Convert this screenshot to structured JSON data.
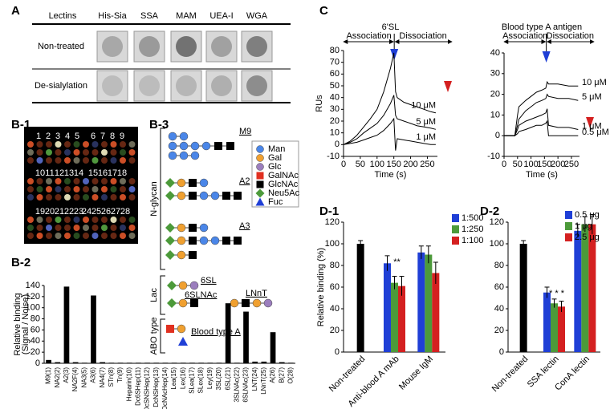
{
  "panel_labels": [
    "A",
    "B-1",
    "B-2",
    "B-3",
    "C",
    "D-1",
    "D-2"
  ],
  "blot": {
    "header": "Lectins",
    "columns": [
      "His-Sia",
      "SSA",
      "MAM",
      "UEA-I",
      "WGA"
    ],
    "rows": [
      "Non-treated",
      "De-sialylation"
    ]
  },
  "array": {
    "spot_numbers": [
      1,
      2,
      3,
      4,
      5,
      6,
      7,
      8,
      9,
      10,
      11,
      12,
      13,
      14,
      15,
      16,
      17,
      18,
      19,
      20,
      21,
      22,
      23,
      24,
      25,
      26,
      27,
      28
    ]
  },
  "glycans": {
    "legend": [
      "Man",
      "Gal",
      "Glc",
      "GalNAc",
      "GlcNAc",
      "Neu5Ac",
      "Fuc"
    ],
    "groups": [
      "N-glycan",
      "Lac",
      "ABO type"
    ],
    "names": [
      "M9",
      "A2",
      "A3",
      "6SL",
      "6SLNAc",
      "LNnT",
      "Blood type A"
    ]
  },
  "chart_data": [
    {
      "type": "bar",
      "ylabel": [
        "Relative binding",
        "(Signal / Noise)"
      ],
      "categories": [
        "M9(1)",
        "NA2(2)",
        "A2(3)",
        "NA2F(4)",
        "NA3(5)",
        "A3(6)",
        "NA4(7)",
        "STn(8)",
        "Tn(9)",
        "Heparin(10)",
        "Dc6SHep(11)",
        "DcSNSHep(12)",
        "DcNSHep(13)",
        "DcNAcHep(14)",
        "Lea(15)",
        "Lex(16)",
        "SLea(17)",
        "SLex(18)",
        "Ley(19)",
        "3SL(20)",
        "6SL(21)",
        "3SLNAc(22)",
        "6SLNAc(23)",
        "LNT(24)",
        "LNnT(25)",
        "A(26)",
        "B(27)",
        "O(28)"
      ],
      "values": [
        6,
        2,
        138,
        2,
        1,
        122,
        2,
        1,
        1,
        1,
        1,
        1,
        1,
        1,
        1,
        1,
        1,
        1,
        1,
        1,
        108,
        1,
        93,
        3,
        3,
        56,
        2,
        1
      ],
      "color": "#000000",
      "ylim": [
        0,
        140
      ],
      "yticks": [
        0,
        20,
        40,
        60,
        80,
        100,
        120,
        140
      ]
    },
    {
      "type": "line",
      "title": "6'SL",
      "xlabel": "Time (s)",
      "ylabel": "RUs",
      "annotations": [
        "Association",
        "Dissociation"
      ],
      "x": [
        0,
        20,
        40,
        60,
        80,
        100,
        120,
        140,
        150,
        155,
        160,
        180,
        200,
        220,
        240,
        260,
        275
      ],
      "series": [
        {
          "name": "10 μM",
          "color": "#000000",
          "values": [
            0,
            3,
            8,
            15,
            22,
            30,
            45,
            65,
            78,
            45,
            40,
            36,
            34,
            32,
            30,
            28,
            27
          ]
        },
        {
          "name": "5 μM",
          "color": "#000000",
          "values": [
            0,
            2,
            5,
            10,
            14,
            18,
            25,
            35,
            42,
            25,
            22,
            20,
            18,
            16,
            15,
            14,
            13
          ]
        },
        {
          "name": "1 μM",
          "color": "#000000",
          "values": [
            0,
            1,
            2,
            4,
            6,
            8,
            12,
            18,
            22,
            -5,
            5,
            4,
            3,
            2,
            1,
            0,
            0
          ]
        }
      ],
      "xlim": [
        0,
        280
      ],
      "xticks": [
        0,
        50,
        100,
        150,
        200,
        250
      ],
      "ylim": [
        -10,
        80
      ],
      "yticks": [
        -10,
        0,
        10,
        20,
        30,
        40,
        50,
        60,
        70,
        80
      ]
    },
    {
      "type": "line",
      "title": "Blood type A antigen",
      "xlabel": "Time (s)",
      "annotations": [
        "Association",
        "Dissociation"
      ],
      "x": [
        0,
        40,
        50,
        55,
        80,
        100,
        120,
        140,
        155,
        160,
        165,
        200,
        240,
        275
      ],
      "series": [
        {
          "name": "10 μM",
          "color": "#000000",
          "values": [
            0,
            0,
            10,
            14,
            17,
            19,
            21,
            22,
            23,
            26,
            25,
            25,
            24,
            24
          ]
        },
        {
          "name": "5 μM",
          "color": "#000000",
          "values": [
            0,
            0,
            5,
            8,
            12,
            14,
            16,
            17,
            18,
            20,
            19,
            18,
            18,
            17
          ]
        },
        {
          "name": "1 μM",
          "color": "#000000",
          "values": [
            0,
            0,
            3,
            5,
            7,
            8,
            9,
            10,
            11,
            13,
            5,
            4,
            4,
            3
          ]
        },
        {
          "name": "0.5 μM",
          "color": "#000000",
          "values": [
            0,
            0,
            1,
            2,
            3,
            4,
            5,
            5,
            6,
            7,
            0,
            0,
            0,
            0
          ]
        }
      ],
      "xlim": [
        0,
        280
      ],
      "xticks": [
        0,
        50,
        100,
        150,
        200,
        250
      ],
      "ylim": [
        -10,
        40
      ],
      "yticks": [
        -10,
        0,
        10,
        20,
        30,
        40
      ]
    },
    {
      "type": "grouped-bar",
      "ylabel": "Relative binding (%)",
      "legend": "right",
      "categories": [
        "Non-treated",
        "Anti-blood A mAb",
        "Mouse IgM"
      ],
      "control": {
        "color": "#000000",
        "values": [
          100,
          null,
          null
        ],
        "errors": [
          3,
          null,
          null
        ]
      },
      "series": [
        {
          "name": "1:500",
          "color": "#1f3fd6",
          "values": [
            null,
            82,
            92
          ],
          "errors": [
            null,
            7,
            6
          ]
        },
        {
          "name": "1:250",
          "color": "#4c9a3a",
          "values": [
            null,
            64,
            90
          ],
          "errors": [
            null,
            6,
            8
          ]
        },
        {
          "name": "1:100",
          "color": "#d42020",
          "values": [
            null,
            61,
            73
          ],
          "errors": [
            null,
            9,
            10
          ]
        }
      ],
      "annotations": [
        {
          "text": "**",
          "category": "Anti-blood A mAb"
        }
      ],
      "ylim": [
        0,
        120
      ],
      "yticks": [
        0,
        20,
        40,
        60,
        80,
        100,
        120
      ]
    },
    {
      "type": "grouped-bar",
      "legend": "upper right",
      "categories": [
        "Non-treated",
        "SSA lectin",
        "ConA lectin"
      ],
      "control": {
        "color": "#000000",
        "values": [
          100,
          null,
          null
        ],
        "errors": [
          3,
          null,
          null
        ]
      },
      "series": [
        {
          "name": "0.5 μg",
          "color": "#1f3fd6",
          "values": [
            null,
            55,
            112
          ],
          "errors": [
            null,
            5,
            6
          ]
        },
        {
          "name": "1 μg",
          "color": "#4c9a3a",
          "values": [
            null,
            45,
            118
          ],
          "errors": [
            null,
            4,
            7
          ]
        },
        {
          "name": "2.5 μg",
          "color": "#d42020",
          "values": [
            null,
            42,
            118
          ],
          "errors": [
            null,
            5,
            9
          ]
        }
      ],
      "annotations": [
        {
          "text": "* * *",
          "category": "SSA lectin"
        }
      ],
      "ylim": [
        0,
        120
      ],
      "yticks": [
        0,
        20,
        40,
        60,
        80,
        100,
        120
      ]
    }
  ]
}
